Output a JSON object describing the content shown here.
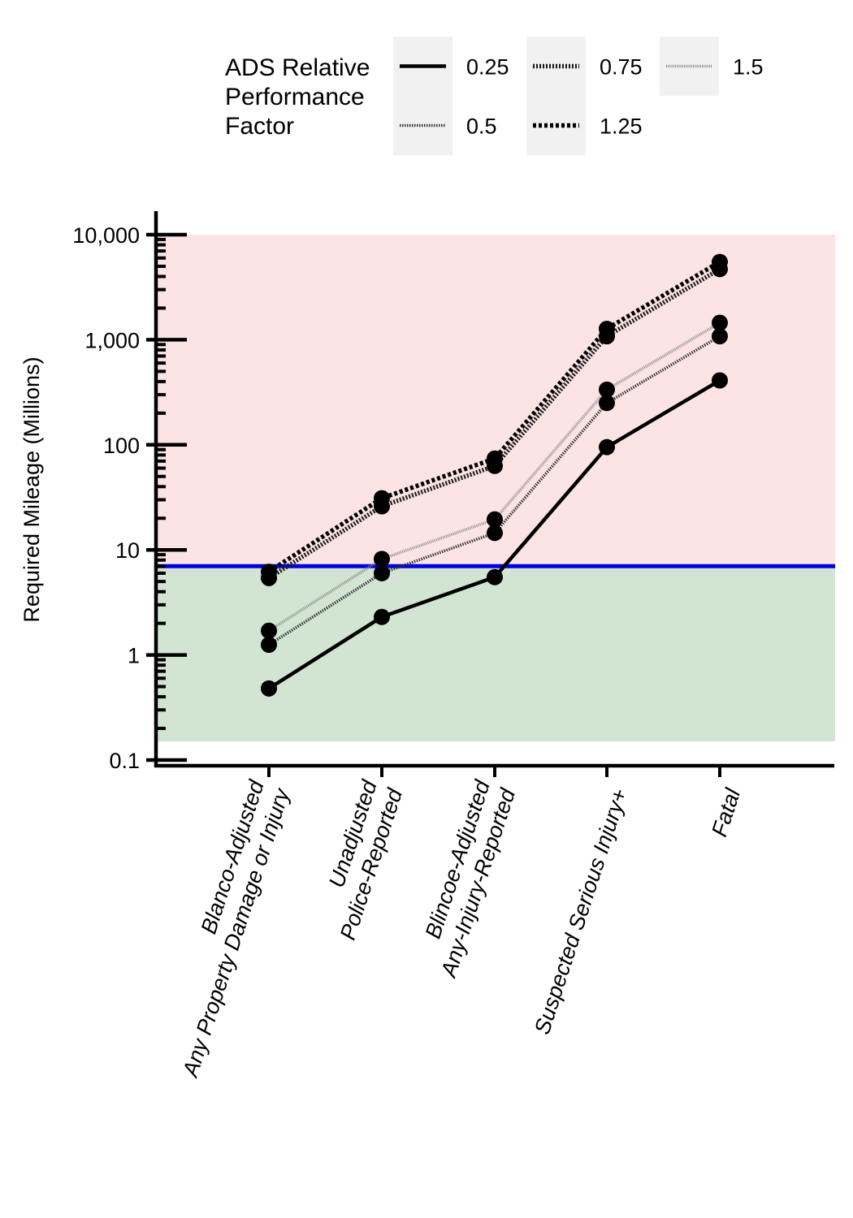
{
  "chart_data": {
    "type": "line",
    "title": "",
    "ylabel": "Required Mileage (Millions)",
    "xlabel": "",
    "yscale": "log",
    "ylim": [
      0.1,
      10000
    ],
    "yticks": [
      0.1,
      1,
      10,
      100,
      1000,
      10000
    ],
    "ytick_labels": [
      "0.1",
      "1",
      "10",
      "100",
      "1,000",
      "10,000"
    ],
    "categories": [
      [
        "Blanco-Adjusted",
        "Any Property Damage or Injury"
      ],
      [
        "Unadjusted",
        "Police-Reported"
      ],
      [
        "Blincoe-Adjusted",
        "Any-Injury-Reported"
      ],
      [
        "Suspected Serious Injury+"
      ],
      [
        "Fatal"
      ]
    ],
    "legend": {
      "title_lines": [
        "ADS Relative",
        "Performance",
        "Factor"
      ],
      "placement": "top"
    },
    "reference_line": {
      "value": 7,
      "color": "#0000dd"
    },
    "regions": [
      {
        "name": "above-threshold",
        "from": 7,
        "to": 10000,
        "color": "#fce4e5"
      },
      {
        "name": "below-threshold",
        "from": 0.15,
        "to": 7,
        "color": "#d2e5d3"
      }
    ],
    "series": [
      {
        "name": "0.25",
        "values": [
          0.48,
          2.3,
          5.5,
          95,
          410
        ]
      },
      {
        "name": "0.5",
        "values": [
          1.25,
          6.0,
          14.5,
          250,
          1080
        ]
      },
      {
        "name": "0.75",
        "values": [
          5.4,
          26,
          63,
          1080,
          4700
        ]
      },
      {
        "name": "1.25",
        "values": [
          6.2,
          31,
          74,
          1270,
          5500
        ]
      },
      {
        "name": "1.5",
        "values": [
          1.7,
          8.2,
          19.5,
          335,
          1450
        ]
      }
    ]
  }
}
